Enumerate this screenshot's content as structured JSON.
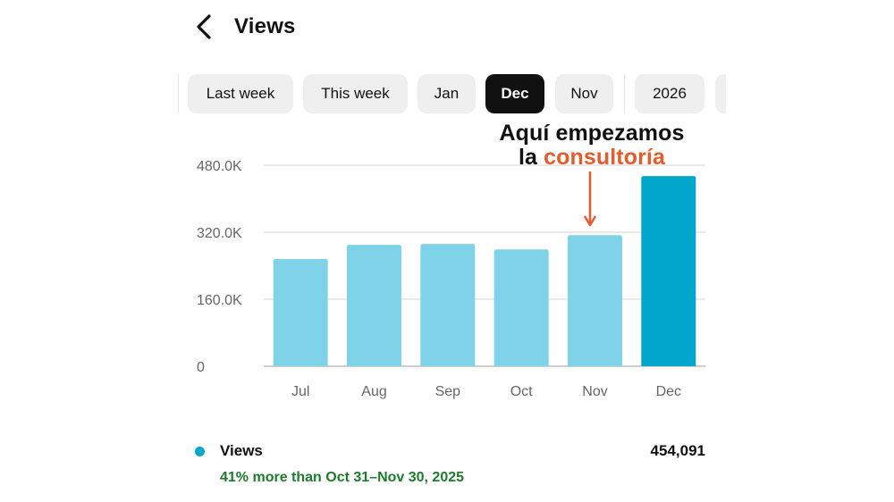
{
  "header": {
    "title": "Views",
    "back_icon": "chevron-left-icon"
  },
  "filters": [
    {
      "label": "Last week",
      "active": false
    },
    {
      "label": "This week",
      "active": false
    },
    {
      "label": "Jan",
      "active": false
    },
    {
      "label": "Dec",
      "active": true
    },
    {
      "label": "Nov",
      "active": false
    },
    {
      "label": "2026",
      "active": false
    },
    {
      "label": "",
      "active": false
    }
  ],
  "annotation": {
    "line1": "Aquí empezamos",
    "line2_prefix": "la ",
    "line2_highlight": "consultoría",
    "highlight_color": "#e25c2c",
    "arrow_color": "#e25c2c"
  },
  "chart_data": {
    "type": "bar",
    "categories": [
      "Jul",
      "Aug",
      "Sep",
      "Oct",
      "Nov",
      "Dec"
    ],
    "values": [
      256000,
      290000,
      292000,
      279000,
      313000,
      454091
    ],
    "highlighted_index": 5,
    "y_ticks": [
      0,
      160000,
      320000,
      480000
    ],
    "y_tick_labels": [
      "0",
      "160.0K",
      "320.0K",
      "480.0K"
    ],
    "ylim": [
      0,
      480000
    ],
    "grid": true,
    "colors": {
      "bar": "#7fd3e8",
      "highlight": "#00a6cc",
      "grid": "#e2e2e2",
      "axis": "#bfbfbf",
      "tick_text": "#666666"
    }
  },
  "legend": {
    "label": "Views",
    "value": "454,091",
    "dot_color": "#00a6cc",
    "comparison": "41% more than Oct 31–Nov 30, 2025",
    "comparison_color": "#1e7a2c"
  }
}
